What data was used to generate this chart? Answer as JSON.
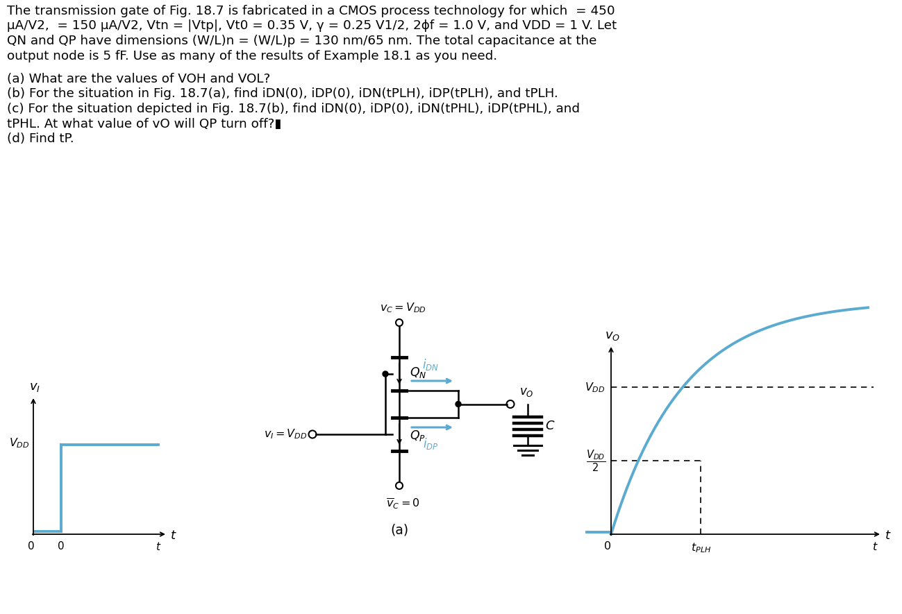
{
  "bg_color": "#ffffff",
  "text_color": "#000000",
  "blue_color": "#5aabcf",
  "fig_width": 12.99,
  "fig_height": 8.85,
  "para_lines": [
    "The transmission gate of Fig. 18.7 is fabricated in a CMOS process technology for which  = 450",
    "μA/V2,  = 150 μA/V2, Vtn = |Vtp|, Vt0 = 0.35 V, γ = 0.25 V1/2, 2ϕf = 1.0 V, and VDD = 1 V. Let",
    "QN and QP have dimensions (W/L)n = (W/L)p = 130 nm/65 nm. The total capacitance at the",
    "output node is 5 fF. Use as many of the results of Example 18.1 as you need."
  ],
  "q_lines": [
    "(a) What are the values of VOH and VOL?",
    "(b) For the situation in Fig. 18.7(a), find iDN(0), iDP(0), iDN(tPLH), iDP(tPLH), and tPLH.",
    "(c) For the situation depicted in Fig. 18.7(b), find iDN(0), iDP(0), iDN(tPHL), iDP(tPHL), and",
    "tPHL. At what value of vO will QP turn off?▮",
    "(d) Find tP."
  ]
}
